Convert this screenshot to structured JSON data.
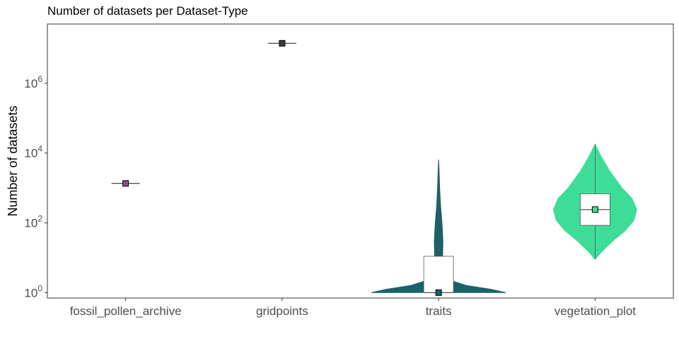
{
  "chart_data": {
    "type": "violin",
    "title": "Number of datasets per Dataset-Type",
    "xlabel": "",
    "ylabel": "Number of datasets",
    "y_scale": "log10",
    "ylim": [
      0.7,
      50000000
    ],
    "yticks": [
      {
        "value": 1,
        "base": "10",
        "exp": "0"
      },
      {
        "value": 100,
        "base": "10",
        "exp": "2"
      },
      {
        "value": 10000,
        "base": "10",
        "exp": "4"
      },
      {
        "value": 1000000,
        "base": "10",
        "exp": "6"
      }
    ],
    "grid": false,
    "legend": "none",
    "categories": [
      "fossil_pollen_archive",
      "gridpoints",
      "traits",
      "vegetation_plot"
    ],
    "series": [
      {
        "category": "fossil_pollen_archive",
        "color": "#8B4F8C",
        "median": 1350,
        "single_value": true
      },
      {
        "category": "gridpoints",
        "color": "#3A3A3A",
        "median": 14000000,
        "single_value": true
      },
      {
        "category": "traits",
        "color": "#1A6269",
        "median": 1,
        "q1": 1,
        "q3": 11,
        "min": 1,
        "max": 6500,
        "density": [
          {
            "y": 1,
            "w": 1.0
          },
          {
            "y": 1.25,
            "w": 0.78
          },
          {
            "y": 1.6,
            "w": 0.42
          },
          {
            "y": 2.1,
            "w": 0.22
          },
          {
            "y": 3,
            "w": 0.11
          },
          {
            "y": 5,
            "w": 0.065
          },
          {
            "y": 10,
            "w": 0.06
          },
          {
            "y": 30,
            "w": 0.065
          },
          {
            "y": 100,
            "w": 0.05
          },
          {
            "y": 300,
            "w": 0.03
          },
          {
            "y": 1000,
            "w": 0.016
          },
          {
            "y": 3000,
            "w": 0.008
          },
          {
            "y": 6500,
            "w": 0.0
          }
        ]
      },
      {
        "category": "vegetation_plot",
        "color": "#3DDC97",
        "median": 240,
        "q1": 85,
        "q3": 680,
        "min": 9,
        "max": 18000,
        "density": [
          {
            "y": 9,
            "w": 0.0
          },
          {
            "y": 15,
            "w": 0.1
          },
          {
            "y": 30,
            "w": 0.26
          },
          {
            "y": 60,
            "w": 0.45
          },
          {
            "y": 120,
            "w": 0.58
          },
          {
            "y": 240,
            "w": 0.62
          },
          {
            "y": 500,
            "w": 0.55
          },
          {
            "y": 1000,
            "w": 0.4
          },
          {
            "y": 3000,
            "w": 0.22
          },
          {
            "y": 8000,
            "w": 0.09
          },
          {
            "y": 18000,
            "w": 0.0
          }
        ]
      }
    ]
  }
}
